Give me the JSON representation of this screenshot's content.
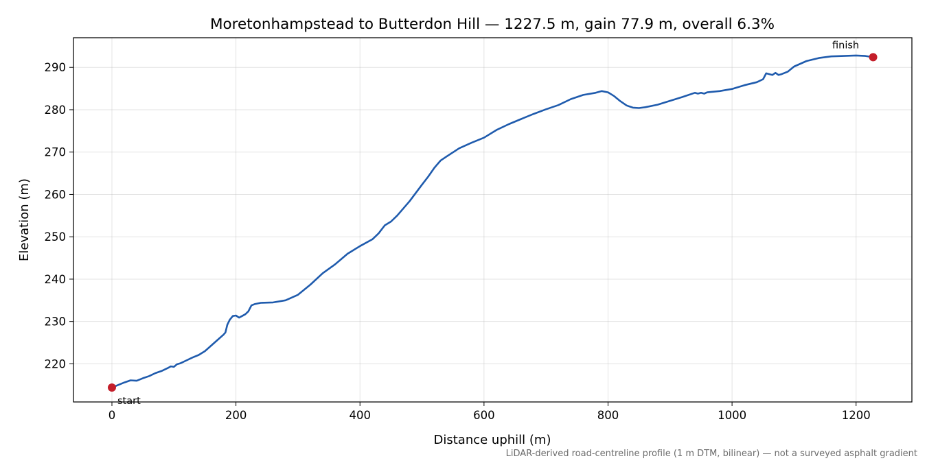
{
  "chart_data": {
    "type": "line",
    "title": "Moretonhampstead to Butterdon Hill — 1227.5 m, gain 77.9 m, overall 6.3%",
    "xlabel": "Distance uphill (m)",
    "ylabel": "Elevation (m)",
    "xlim": [
      -62,
      1290
    ],
    "ylim": [
      211,
      297
    ],
    "xticks": [
      0,
      200,
      400,
      600,
      800,
      1000,
      1200
    ],
    "yticks": [
      220,
      230,
      240,
      250,
      260,
      270,
      280,
      290
    ],
    "xtick_labels": [
      "0",
      "200",
      "400",
      "600",
      "800",
      "1000",
      "1200"
    ],
    "ytick_labels": [
      "220",
      "230",
      "240",
      "250",
      "260",
      "270",
      "280",
      "290"
    ],
    "grid": true,
    "series": [
      {
        "color": "#1f5bad",
        "points": [
          [
            0,
            214.4
          ],
          [
            10,
            215.0
          ],
          [
            20,
            215.6
          ],
          [
            30,
            216.1
          ],
          [
            40,
            216.0
          ],
          [
            50,
            216.6
          ],
          [
            60,
            217.1
          ],
          [
            70,
            217.8
          ],
          [
            80,
            218.3
          ],
          [
            90,
            219.0
          ],
          [
            95,
            219.4
          ],
          [
            100,
            219.3
          ],
          [
            105,
            219.9
          ],
          [
            110,
            220.1
          ],
          [
            120,
            220.8
          ],
          [
            130,
            221.5
          ],
          [
            140,
            222.1
          ],
          [
            150,
            223.0
          ],
          [
            160,
            224.3
          ],
          [
            170,
            225.6
          ],
          [
            180,
            226.9
          ],
          [
            183,
            227.4
          ],
          [
            186,
            229.2
          ],
          [
            190,
            230.4
          ],
          [
            195,
            231.3
          ],
          [
            200,
            231.4
          ],
          [
            205,
            230.9
          ],
          [
            210,
            231.3
          ],
          [
            215,
            231.7
          ],
          [
            220,
            232.4
          ],
          [
            225,
            233.8
          ],
          [
            230,
            234.1
          ],
          [
            240,
            234.4
          ],
          [
            260,
            234.5
          ],
          [
            280,
            235.0
          ],
          [
            300,
            236.3
          ],
          [
            320,
            238.7
          ],
          [
            340,
            241.4
          ],
          [
            360,
            243.5
          ],
          [
            380,
            246.0
          ],
          [
            400,
            247.8
          ],
          [
            420,
            249.4
          ],
          [
            430,
            250.8
          ],
          [
            440,
            252.7
          ],
          [
            450,
            253.6
          ],
          [
            460,
            255.0
          ],
          [
            480,
            258.4
          ],
          [
            500,
            262.3
          ],
          [
            510,
            264.2
          ],
          [
            520,
            266.3
          ],
          [
            530,
            268.0
          ],
          [
            540,
            269.0
          ],
          [
            560,
            270.9
          ],
          [
            580,
            272.2
          ],
          [
            600,
            273.4
          ],
          [
            620,
            275.2
          ],
          [
            640,
            276.6
          ],
          [
            660,
            277.8
          ],
          [
            680,
            279.0
          ],
          [
            700,
            280.1
          ],
          [
            720,
            281.1
          ],
          [
            740,
            282.5
          ],
          [
            760,
            283.5
          ],
          [
            780,
            284.0
          ],
          [
            790,
            284.4
          ],
          [
            800,
            284.1
          ],
          [
            810,
            283.2
          ],
          [
            820,
            282.0
          ],
          [
            830,
            281.0
          ],
          [
            840,
            280.5
          ],
          [
            850,
            280.4
          ],
          [
            860,
            280.6
          ],
          [
            880,
            281.2
          ],
          [
            900,
            282.1
          ],
          [
            920,
            283.0
          ],
          [
            940,
            284.0
          ],
          [
            945,
            283.8
          ],
          [
            950,
            284.0
          ],
          [
            955,
            283.8
          ],
          [
            960,
            284.1
          ],
          [
            980,
            284.4
          ],
          [
            1000,
            284.9
          ],
          [
            1020,
            285.8
          ],
          [
            1040,
            286.5
          ],
          [
            1050,
            287.2
          ],
          [
            1055,
            288.6
          ],
          [
            1060,
            288.4
          ],
          [
            1065,
            288.2
          ],
          [
            1070,
            288.7
          ],
          [
            1075,
            288.2
          ],
          [
            1080,
            288.4
          ],
          [
            1090,
            289.0
          ],
          [
            1100,
            290.2
          ],
          [
            1120,
            291.5
          ],
          [
            1140,
            292.2
          ],
          [
            1160,
            292.6
          ],
          [
            1180,
            292.7
          ],
          [
            1200,
            292.8
          ],
          [
            1215,
            292.7
          ],
          [
            1227.5,
            292.4
          ]
        ]
      }
    ],
    "markers": [
      {
        "x": 0,
        "y": 214.4,
        "label": "start",
        "color": "#c41e2a"
      },
      {
        "x": 1227.5,
        "y": 292.4,
        "label": "finish",
        "color": "#c41e2a"
      }
    ],
    "footnote": "LiDAR-derived road-centreline profile (1 m DTM, bilinear) — not a surveyed asphalt gradient"
  }
}
